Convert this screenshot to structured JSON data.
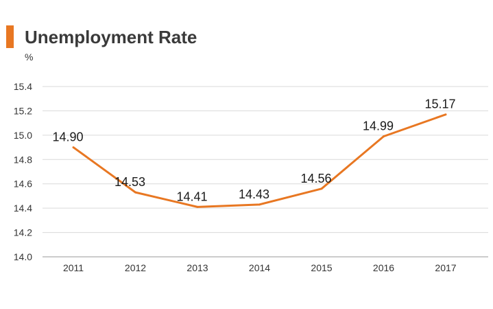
{
  "colors": {
    "accent": "#E87722",
    "line": "#E87722",
    "grid": "#d9d9d9",
    "axis": "#9a9a9a"
  },
  "chart_data": {
    "type": "line",
    "title": "Unemployment Rate",
    "unit": "%",
    "xlabel": "",
    "ylabel": "%",
    "grid": true,
    "legend": "none",
    "categories": [
      "2011",
      "2012",
      "2013",
      "2014",
      "2015",
      "2016",
      "2017"
    ],
    "series": [
      {
        "values": [
          14.9,
          14.53,
          14.41,
          14.43,
          14.56,
          14.99,
          15.17
        ],
        "labels": [
          "14.90",
          "14.53",
          "14.41",
          "14.43",
          "14.56",
          "14.99",
          "15.17"
        ]
      }
    ],
    "ylim": [
      14.0,
      15.4
    ],
    "yticks": [
      "14.0",
      "14.2",
      "14.4",
      "14.6",
      "14.8",
      "15.0",
      "15.2",
      "15.4"
    ]
  }
}
